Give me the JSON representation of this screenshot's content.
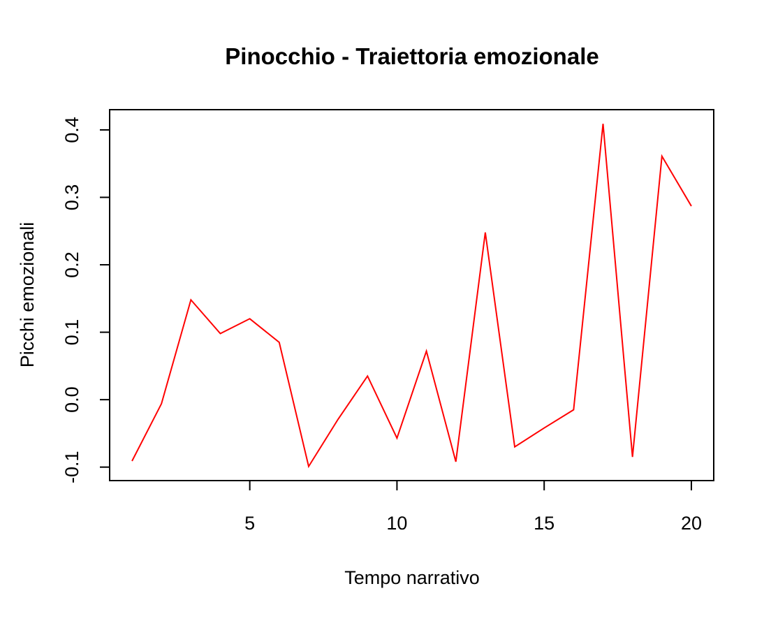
{
  "chart_data": {
    "type": "line",
    "title": "Pinocchio - Traiettoria emozionale",
    "x_label": "Tempo narrativo",
    "y_label": "Picchi emozionali",
    "x": [
      1,
      2,
      3,
      4,
      5,
      6,
      7,
      8,
      9,
      10,
      11,
      12,
      13,
      14,
      15,
      16,
      17,
      18,
      19,
      20
    ],
    "series": [
      {
        "color": "#ff0000",
        "values": [
          -0.091,
          -0.006,
          0.148,
          0.098,
          0.12,
          0.085,
          -0.099,
          -0.029,
          0.035,
          -0.057,
          0.072,
          -0.092,
          0.248,
          -0.07,
          -0.042,
          -0.015,
          0.409,
          -0.085,
          0.361,
          0.287
        ]
      }
    ],
    "xlim": [
      0.24,
      20.76
    ],
    "ylim": [
      -0.12,
      0.43
    ],
    "xticks": [
      5,
      10,
      15,
      20
    ],
    "yticks": [
      -0.1,
      {
        "value": 0,
        "label": "0.0"
      },
      0.1,
      0.2,
      0.3,
      0.4
    ]
  }
}
